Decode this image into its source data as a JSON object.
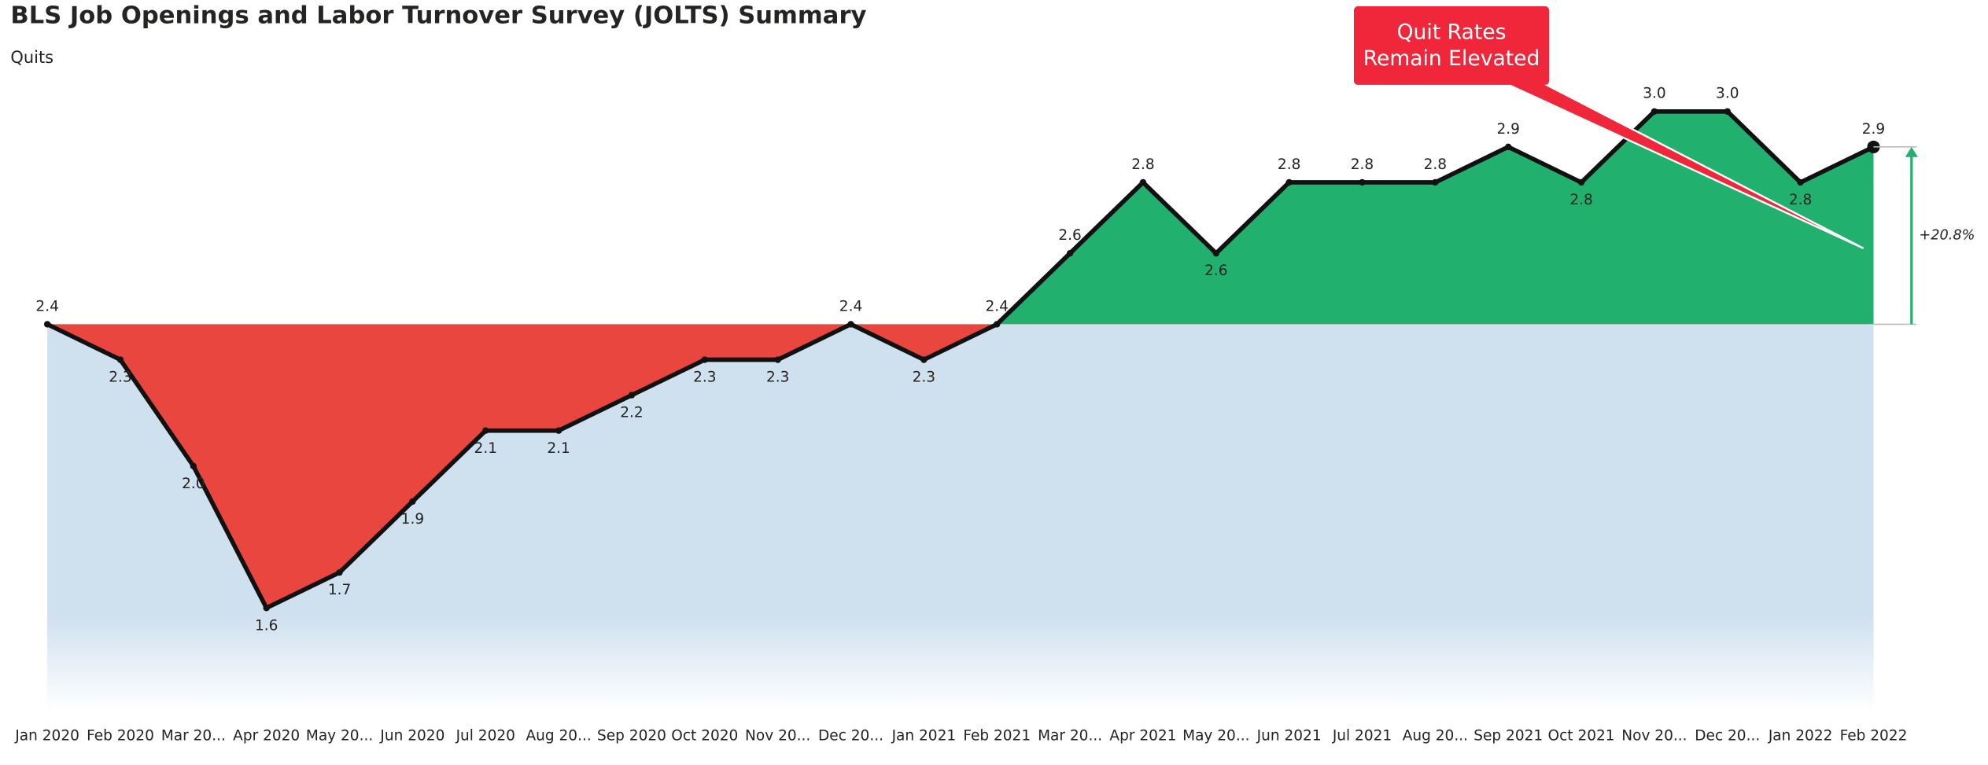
{
  "chart_data": {
    "type": "area-line",
    "title": "BLS Job Openings and Labor Turnover Survey (JOLTS) Summary",
    "subtitle": "Quits",
    "categories": [
      "Jan 2020",
      "Feb 2020",
      "Mar 20...",
      "Apr 2020",
      "May 20...",
      "Jun 2020",
      "Jul 2020",
      "Aug 20...",
      "Sep 2020",
      "Oct 2020",
      "Nov 20...",
      "Dec 20...",
      "Jan 2021",
      "Feb 2021",
      "Mar 20...",
      "Apr 2021",
      "May 20...",
      "Jun 2021",
      "Jul 2021",
      "Aug 20...",
      "Sep 2021",
      "Oct 2021",
      "Nov 20...",
      "Dec 20...",
      "Jan 2022",
      "Feb 2022"
    ],
    "values": [
      2.4,
      2.3,
      2.0,
      1.6,
      1.7,
      1.9,
      2.1,
      2.1,
      2.2,
      2.3,
      2.3,
      2.4,
      2.3,
      2.4,
      2.6,
      2.8,
      2.6,
      2.8,
      2.8,
      2.8,
      2.9,
      2.8,
      3.0,
      3.0,
      2.8,
      2.9
    ],
    "value_labels": [
      "2.4",
      "2.3",
      "2.0",
      "1.6",
      "1.7",
      "1.9",
      "2.1",
      "2.1",
      "2.2",
      "2.3",
      "2.3",
      "2.4",
      "2.3",
      "2.4",
      "2.6",
      "2.8",
      "2.6",
      "2.8",
      "2.8",
      "2.8",
      "2.9",
      "2.8",
      "3.0",
      "3.0",
      "2.8",
      "2.9"
    ],
    "above_color": "#21b06d",
    "below_color": "#e8463e",
    "callout": [
      "Quit Rates",
      "Remain Elevated"
    ],
    "callout_color": "#f0263a",
    "change_label": "+20.8%"
  }
}
